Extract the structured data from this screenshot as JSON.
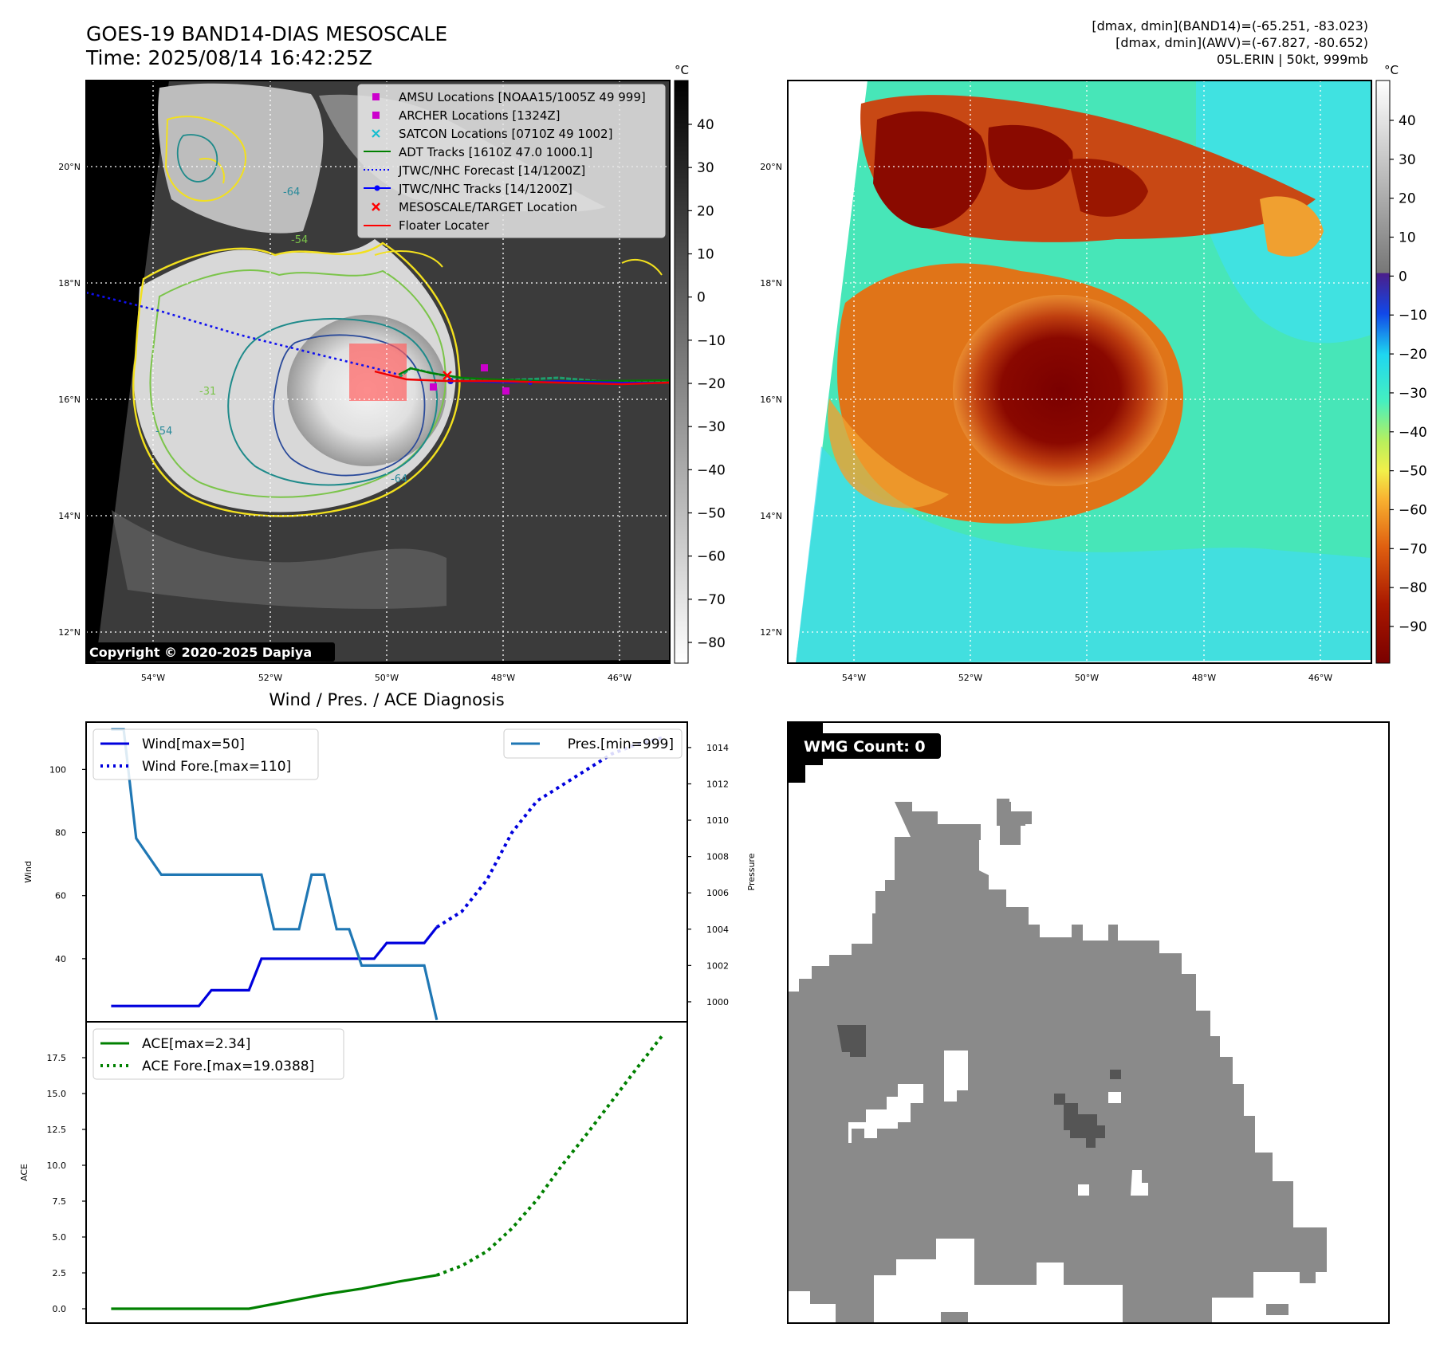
{
  "header": {
    "title_line1": "GOES-19 BAND14-DIAS MESOSCALE",
    "title_line2": "Time: 2025/08/14 16:42:25Z",
    "info_line1": "[dmax, dmin](BAND14)=(-65.251, -83.023)",
    "info_line2": "[dmax, dmin](AWV)=(-67.827, -80.652)",
    "info_line3": "05L.ERIN | 50kt, 999mb"
  },
  "map": {
    "lat_labels": [
      "20°N",
      "18°N",
      "16°N",
      "14°N",
      "12°N"
    ],
    "lon_labels": [
      "54°W",
      "52°W",
      "50°W",
      "48°W",
      "46°W"
    ],
    "copyright": "Copyright © 2020-2025 Dapiya",
    "contour_labels": [
      "-64",
      "-54",
      "-31",
      "-64",
      "-54"
    ],
    "legend": [
      {
        "label": "AMSU Locations [NOAA15/1005Z 49 999]",
        "color": "#cc00cc",
        "marker": "square"
      },
      {
        "label": "ARCHER Locations [1324Z]",
        "color": "#cc00cc",
        "marker": "square"
      },
      {
        "label": "SATCON Locations [0710Z 49 1002]",
        "color": "#17becf",
        "marker": "x"
      },
      {
        "label": "ADT Tracks [1610Z 47.0 1000.1]",
        "color": "#008000",
        "marker": "line"
      },
      {
        "label": "JTWC/NHC Forecast [14/1200Z]",
        "color": "#0000ff",
        "marker": "dotted"
      },
      {
        "label": "JTWC/NHC Tracks [14/1200Z]",
        "color": "#0000ff",
        "marker": "line-dot"
      },
      {
        "label": "MESOSCALE/TARGET Location",
        "color": "#ff0000",
        "marker": "x"
      },
      {
        "label": "Floater Locater",
        "color": "#ff0000",
        "marker": "line"
      }
    ]
  },
  "colorbar_gray": {
    "unit": "°C",
    "ticks": [
      "40",
      "30",
      "20",
      "10",
      "0",
      "−10",
      "−20",
      "−30",
      "−40",
      "−50",
      "−60",
      "−70",
      "−80"
    ]
  },
  "colorbar_color": {
    "unit": "°C",
    "ticks": [
      "40",
      "30",
      "20",
      "10",
      "0",
      "−10",
      "−20",
      "−30",
      "−40",
      "−50",
      "−60",
      "−70",
      "−80",
      "−90"
    ]
  },
  "chart_data": [
    {
      "type": "line",
      "title": "Wind / Pres. / ACE Diagnosis",
      "ylabel": "Wind",
      "y2label": "Pressure",
      "ylim": [
        20,
        115
      ],
      "y2lim": [
        998.9,
        1015.4
      ],
      "yticks": [
        "40",
        "60",
        "80",
        "100"
      ],
      "y2ticks": [
        "1000",
        "1002",
        "1004",
        "1006",
        "1008",
        "1010",
        "1012",
        "1014"
      ],
      "legend_left": [
        "Wind[max=50]",
        "Wind Fore.[max=110]"
      ],
      "legend_right": [
        "Pres.[min=999]"
      ],
      "series": [
        {
          "name": "Wind[max=50]",
          "color": "#0000dd",
          "style": "solid",
          "axis": "left",
          "x": [
            0,
            7,
            8,
            11,
            12,
            15,
            16,
            17,
            18,
            19,
            20,
            21,
            22,
            23,
            24,
            25,
            26
          ],
          "values": [
            25,
            25,
            30,
            30,
            40,
            40,
            40,
            40,
            40,
            40,
            40,
            40,
            45,
            45,
            45,
            45,
            50
          ]
        },
        {
          "name": "Wind Fore.[max=110]",
          "color": "#0000dd",
          "style": "dotted",
          "axis": "left",
          "x": [
            26,
            28,
            30,
            32,
            34,
            36,
            38,
            40,
            42,
            44
          ],
          "values": [
            50,
            55,
            65,
            80,
            90,
            95,
            100,
            105,
            108,
            110
          ]
        },
        {
          "name": "Pres.[min=999]",
          "color": "#1f77b4",
          "style": "solid",
          "axis": "right",
          "x": [
            0,
            1,
            2,
            4,
            6,
            8,
            10,
            11,
            12,
            13,
            14,
            15,
            16,
            17,
            18,
            19,
            20,
            21,
            22,
            23,
            24,
            25,
            26
          ],
          "values": [
            1015,
            1015,
            1009,
            1007,
            1007,
            1007,
            1007,
            1007,
            1007,
            1004,
            1004,
            1004,
            1007,
            1007,
            1004,
            1004,
            1002,
            1002,
            1002,
            1002,
            1002,
            1002,
            999
          ]
        }
      ]
    },
    {
      "type": "line",
      "ylabel": "ACE",
      "ylim": [
        -1,
        20
      ],
      "yticks": [
        "0.0",
        "2.5",
        "5.0",
        "7.5",
        "10.0",
        "12.5",
        "15.0",
        "17.5"
      ],
      "legend": [
        "ACE[max=2.34]",
        "ACE Fore.[max=19.0388]"
      ],
      "series": [
        {
          "name": "ACE[max=2.34]",
          "color": "#008000",
          "style": "solid",
          "x": [
            0,
            4,
            8,
            11,
            14,
            17,
            20,
            23,
            26
          ],
          "values": [
            0,
            0,
            0,
            0,
            0.5,
            1.0,
            1.4,
            1.9,
            2.34
          ]
        },
        {
          "name": "ACE Fore.[max=19.0388]",
          "color": "#008000",
          "style": "dotted",
          "x": [
            26,
            28,
            30,
            32,
            34,
            36,
            38,
            40,
            42,
            44
          ],
          "values": [
            2.34,
            3.0,
            4.0,
            5.6,
            7.6,
            10.0,
            12.2,
            14.5,
            16.8,
            19.0388
          ]
        }
      ]
    }
  ],
  "wmg": {
    "label": "WMG Count: 0"
  }
}
